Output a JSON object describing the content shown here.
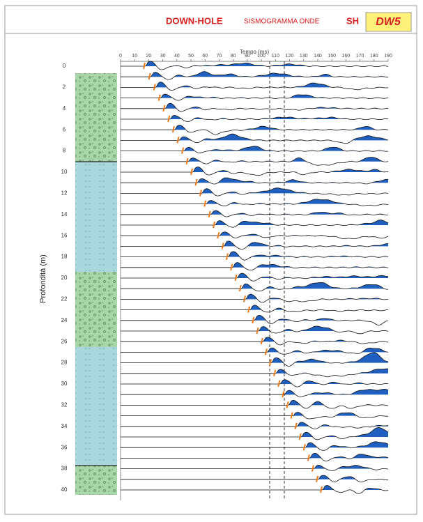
{
  "header": {
    "title": "DOWN-HOLE",
    "subtitle": "SISMOGRAMMA ONDE",
    "wave": "SH",
    "code": "DW5"
  },
  "figure": {
    "x_title": "Tempo (ms)",
    "y_title": "Profondità (m)",
    "time_labels": [
      "0",
      "10",
      "20",
      "30",
      "40",
      "50",
      "60",
      "70",
      "80",
      "90",
      "100",
      "110",
      "120",
      "130",
      "140",
      "150",
      "160",
      "170",
      "180",
      "190"
    ],
    "depth_labels": [
      "0",
      "2",
      "4",
      "6",
      "8",
      "10",
      "12",
      "14",
      "16",
      "18",
      "20",
      "22",
      "24",
      "26",
      "28",
      "30",
      "32",
      "34",
      "36",
      "38",
      "40"
    ]
  }
}
